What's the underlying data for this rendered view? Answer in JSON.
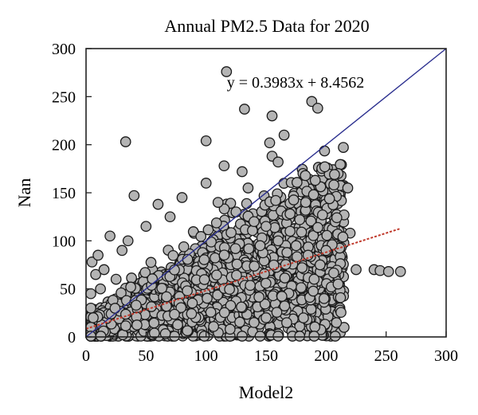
{
  "chart_data": {
    "type": "scatter",
    "title": "Annual PM2.5 Data for 2020",
    "xlabel": "Model2",
    "ylabel": "Nan",
    "xlim": [
      0,
      300
    ],
    "ylim": [
      0,
      300
    ],
    "xticks": [
      "0",
      "50",
      "100",
      "150",
      "200",
      "250",
      "300"
    ],
    "yticks": [
      "0",
      "50",
      "100",
      "150",
      "200",
      "250",
      "300"
    ],
    "grid": false,
    "marker_fill": "#b4b4b4",
    "marker_edge": "#1a1a1a",
    "reference_line": {
      "x": [
        0,
        300
      ],
      "y": [
        0,
        300
      ],
      "color": "#2b2f8f"
    },
    "trend_line": {
      "slope": 0.3983,
      "intercept": 8.4562,
      "x": [
        0,
        262
      ],
      "color": "#c0392b",
      "style": "dotted"
    },
    "equation": "y = 0.3983x + 8.4562",
    "outliers": [
      [
        117,
        276
      ],
      [
        33,
        203
      ],
      [
        100,
        204
      ],
      [
        132,
        237
      ],
      [
        155,
        230
      ],
      [
        165,
        210
      ],
      [
        188,
        245
      ],
      [
        193,
        238
      ],
      [
        153,
        202
      ],
      [
        155,
        188
      ],
      [
        160,
        182
      ],
      [
        210,
        170
      ],
      [
        207,
        169
      ],
      [
        218,
        155
      ],
      [
        158,
        142
      ],
      [
        183,
        140
      ],
      [
        197,
        127
      ],
      [
        170,
        128
      ],
      [
        178,
        122
      ],
      [
        40,
        147
      ],
      [
        60,
        138
      ],
      [
        100,
        160
      ],
      [
        115,
        178
      ],
      [
        130,
        172
      ],
      [
        240,
        70
      ],
      [
        245,
        69
      ],
      [
        252,
        68
      ],
      [
        262,
        68
      ],
      [
        225,
        70
      ],
      [
        220,
        108
      ],
      [
        214,
        104
      ],
      [
        205,
        96
      ],
      [
        200,
        90
      ],
      [
        180,
        72
      ],
      [
        190,
        60
      ],
      [
        210,
        55
      ],
      [
        172,
        0
      ],
      [
        178,
        0
      ],
      [
        190,
        0
      ],
      [
        160,
        0
      ],
      [
        145,
        0
      ],
      [
        130,
        0
      ],
      [
        120,
        0
      ],
      [
        140,
        15
      ],
      [
        150,
        20
      ],
      [
        120,
        8
      ],
      [
        5,
        78
      ],
      [
        10,
        85
      ],
      [
        20,
        105
      ],
      [
        30,
        90
      ],
      [
        8,
        65
      ],
      [
        15,
        70
      ],
      [
        25,
        60
      ],
      [
        3,
        45
      ],
      [
        12,
        50
      ],
      [
        2,
        30
      ],
      [
        0,
        5
      ],
      [
        1,
        10
      ],
      [
        0,
        0
      ],
      [
        6,
        20
      ],
      [
        160,
        100
      ],
      [
        170,
        110
      ],
      [
        150,
        115
      ],
      [
        140,
        120
      ],
      [
        125,
        130
      ],
      [
        110,
        140
      ],
      [
        135,
        155
      ],
      [
        80,
        145
      ],
      [
        70,
        125
      ],
      [
        50,
        115
      ],
      [
        35,
        100
      ],
      [
        145,
        95
      ],
      [
        185,
        85
      ],
      [
        195,
        75
      ],
      [
        175,
        95
      ]
    ],
    "cloud": {
      "n": 2600,
      "x_max": 215,
      "slope": 0.3983,
      "intercept": 8.4562
    }
  }
}
